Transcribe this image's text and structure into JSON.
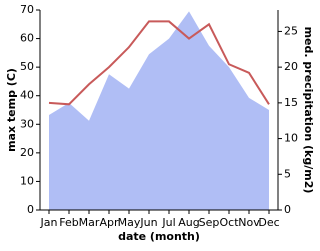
{
  "chart_data": {
    "type": "line-area",
    "x_label": "date (month)",
    "y_label": "max temp (C)",
    "y2_label": "med. precipitation (kg/m2)",
    "categories": [
      "Jan",
      "Feb",
      "Mar",
      "Apr",
      "May",
      "Jun",
      "Jul",
      "Aug",
      "Sep",
      "Oct",
      "Nov",
      "Dec"
    ],
    "ylim": [
      0,
      70
    ],
    "yticks": [
      0,
      10,
      20,
      30,
      40,
      50,
      60,
      70
    ],
    "y2lim": [
      0,
      28
    ],
    "y2ticks": [
      0,
      5,
      10,
      15,
      20,
      25
    ],
    "series": [
      {
        "name": "med. precipitation",
        "kind": "area",
        "axis": "y2",
        "color": "#b0bef5",
        "values": [
          13.3,
          15,
          12.5,
          19,
          17,
          21.8,
          24,
          27.8,
          23,
          20,
          15.7,
          14
        ]
      },
      {
        "name": "max temp",
        "kind": "line",
        "color": "#c85a5a",
        "values": [
          37.5,
          37,
          44,
          50,
          57,
          66,
          66,
          60,
          65,
          51,
          48,
          37
        ]
      }
    ]
  }
}
